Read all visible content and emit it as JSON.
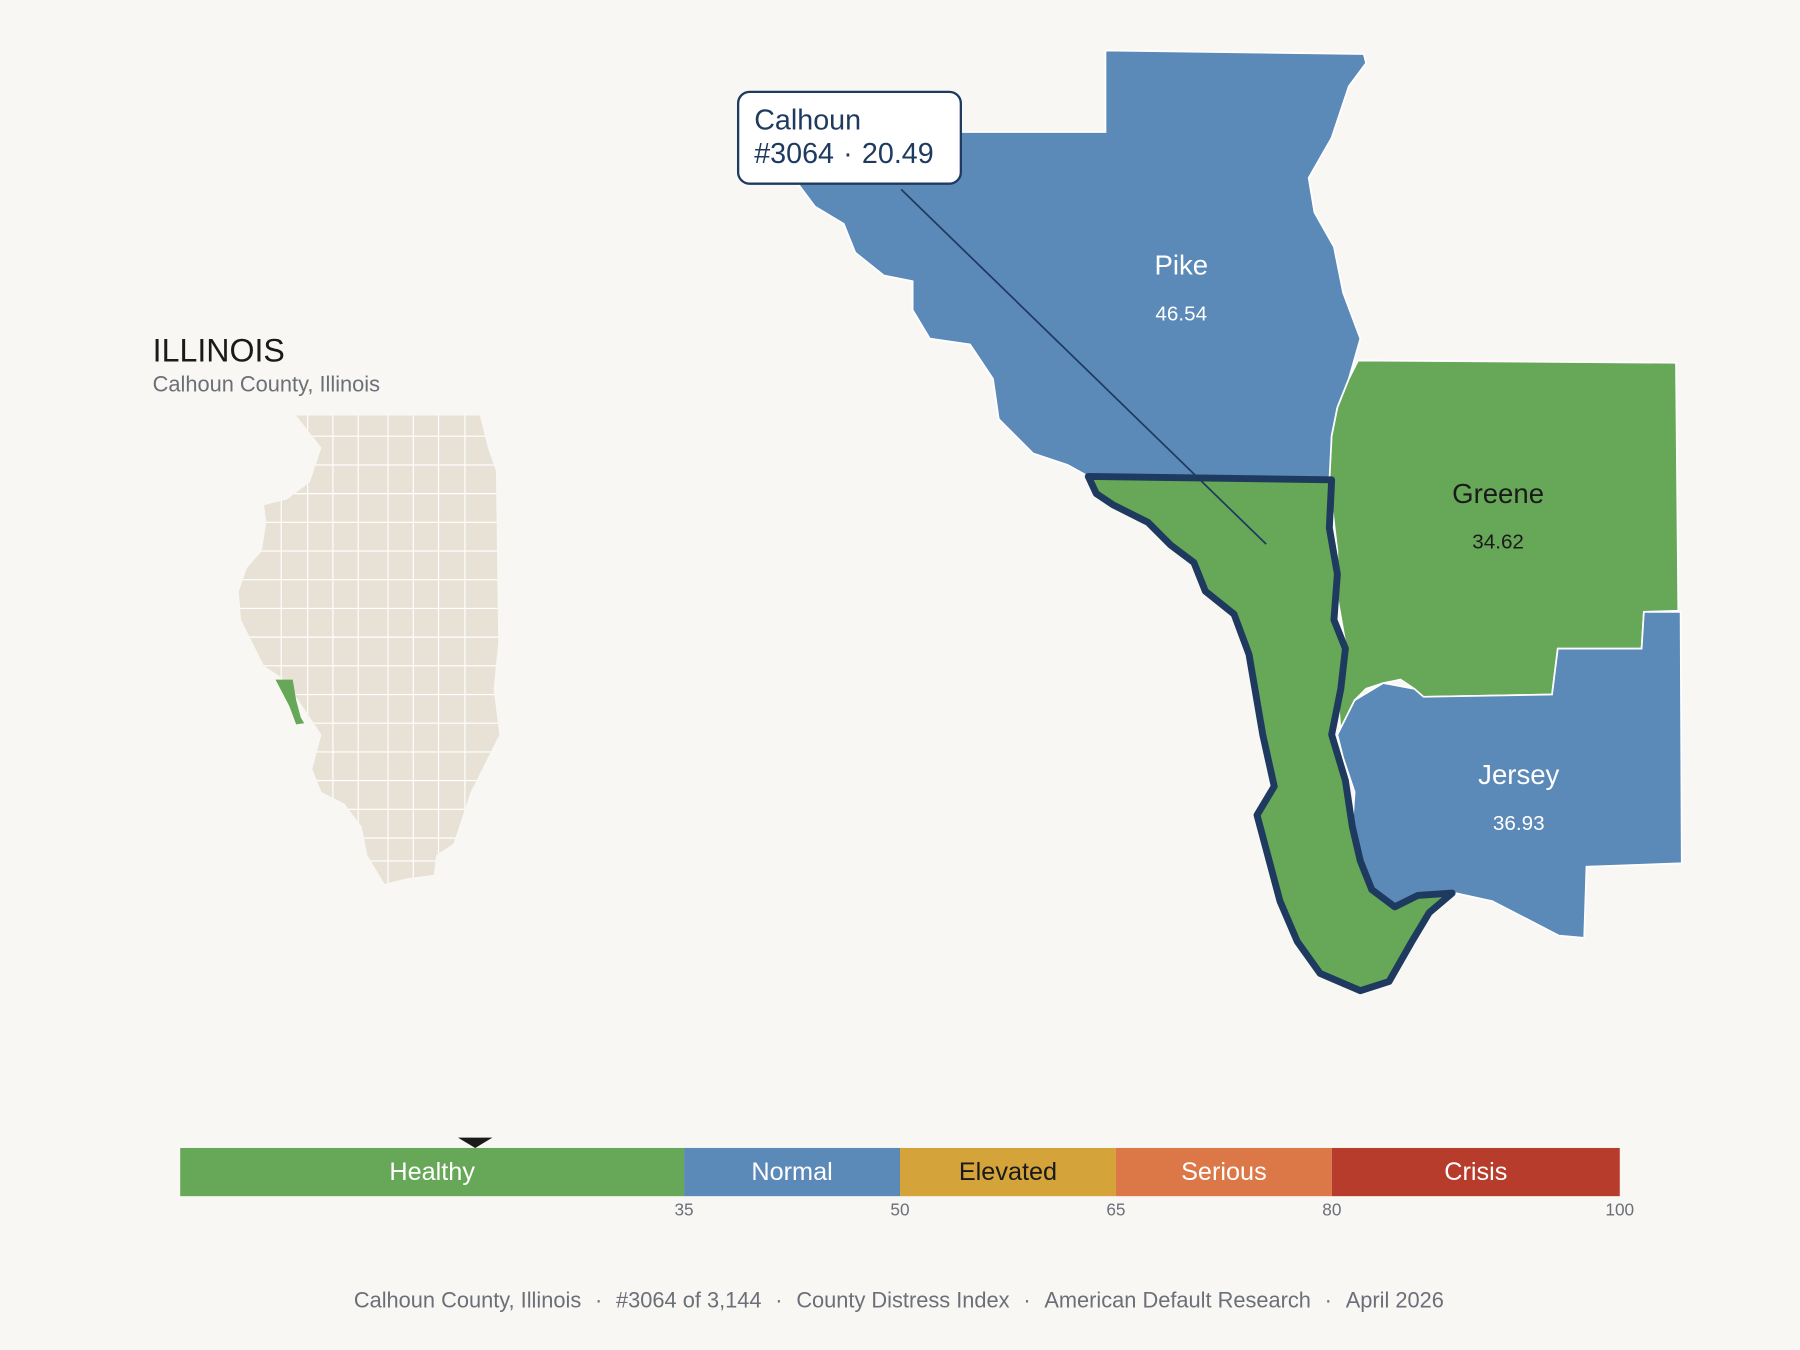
{
  "state": {
    "title": "ILLINOIS",
    "subtitle": "Calhoun County, Illinois"
  },
  "callout": {
    "name": "Calhoun",
    "rank": "#3064",
    "score": 20.49
  },
  "counties": [
    {
      "name": "Pike",
      "score": 46.54
    },
    {
      "name": "Greene",
      "score": 34.62
    },
    {
      "name": "Jersey",
      "score": 36.93
    },
    {
      "name": "Calhoun",
      "score": 20.49
    }
  ],
  "scale": {
    "range": [
      0,
      100
    ],
    "bands": [
      {
        "label": "Healthy",
        "to": 35,
        "color": "#67a758"
      },
      {
        "label": "Normal",
        "to": 50,
        "color": "#5b89b8"
      },
      {
        "label": "Elevated",
        "to": 65,
        "color": "#d4a43a"
      },
      {
        "label": "Serious",
        "to": 80,
        "color": "#dc7748"
      },
      {
        "label": "Crisis",
        "to": 100,
        "color": "#b83c2b"
      }
    ]
  },
  "footer": {
    "items": [
      "Calhoun County, Illinois",
      "#3064 of 3,144",
      "County Distress Index",
      "American Default Research",
      "April 2026"
    ],
    "separator": "·"
  }
}
